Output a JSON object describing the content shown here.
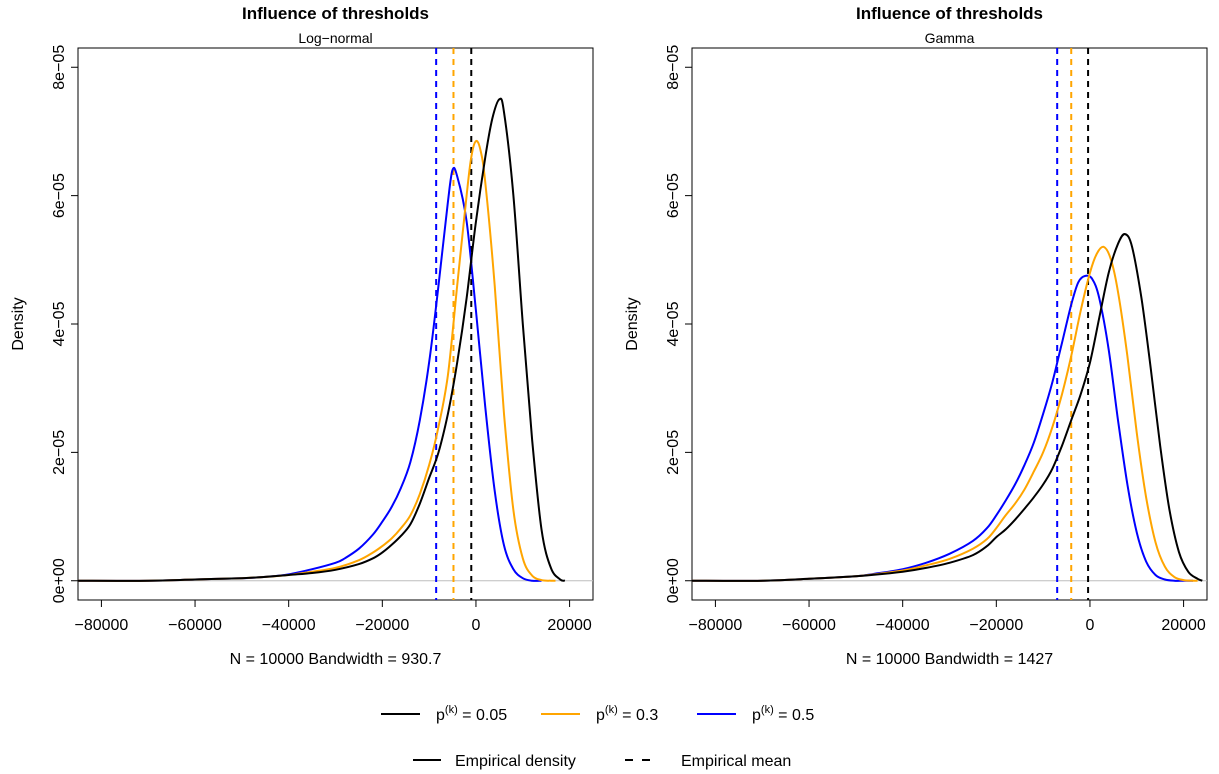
{
  "legend": {
    "thresholds": [
      {
        "label_base": "p",
        "label_sup": "(k)",
        "label_eq": " = 0.05",
        "color": "#000000"
      },
      {
        "label_base": "p",
        "label_sup": "(k)",
        "label_eq": " = 0.3",
        "color": "#FFA500"
      },
      {
        "label_base": "p",
        "label_sup": "(k)",
        "label_eq": " = 0.5",
        "color": "#0000FF"
      }
    ],
    "linetypes": [
      {
        "label": "Empirical density",
        "dash": "solid"
      },
      {
        "label": "Empirical mean",
        "dash": "dashed"
      }
    ]
  },
  "chart_data": [
    {
      "type": "line",
      "title": "Influence of thresholds",
      "subtitle": "Log−normal",
      "ylabel": "Density",
      "xlabel": "N = 10000   Bandwidth = 930.7",
      "xlim": [
        -85000,
        25000
      ],
      "ylim": [
        -3e-06,
        8.3e-05
      ],
      "xticks": [
        -80000,
        -60000,
        -40000,
        -20000,
        0,
        20000
      ],
      "xtick_labels": [
        "−80000",
        "−60000",
        "−40000",
        "−20000",
        "0",
        "20000"
      ],
      "yticks": [
        0,
        2e-05,
        4e-05,
        6e-05,
        8e-05
      ],
      "ytick_labels": [
        "0e+00",
        "2e−05",
        "4e−05",
        "6e−05",
        "8e−05"
      ],
      "grid": false,
      "series": [
        {
          "color": "#000000",
          "mean": -1000,
          "x": [
            -85000,
            -70000,
            -60000,
            -50000,
            -45000,
            -40000,
            -35000,
            -30000,
            -25000,
            -22000,
            -20000,
            -18000,
            -16000,
            -14000,
            -12000,
            -10000,
            -8000,
            -6000,
            -4000,
            -2000,
            0,
            2000,
            3500,
            5000,
            6000,
            8000,
            10000,
            12000,
            14000,
            16000,
            18000,
            19000
          ],
          "y": [
            0,
            0,
            2e-07,
            4e-07,
            6e-07,
            9e-07,
            1.2e-06,
            1.7e-06,
            2.6e-06,
            3.5e-06,
            4.4e-06,
            5.6e-06,
            7e-06,
            8.8e-06,
            1.2e-05,
            1.6e-05,
            2e-05,
            2.6e-05,
            3.4e-05,
            4.4e-05,
            5.6e-05,
            6.6e-05,
            7.2e-05,
            7.5e-05,
            7.3e-05,
            6e-05,
            4e-05,
            2.2e-05,
            8e-06,
            2e-06,
            2e-07,
            0
          ]
        },
        {
          "color": "#FFA500",
          "mean": -4800,
          "x": [
            -85000,
            -70000,
            -60000,
            -50000,
            -45000,
            -40000,
            -35000,
            -30000,
            -25000,
            -22000,
            -20000,
            -18000,
            -16000,
            -14000,
            -12000,
            -10000,
            -8000,
            -6000,
            -4000,
            -2000,
            -1000,
            0,
            1000,
            2000,
            4000,
            6000,
            8000,
            10000,
            12000,
            14000,
            16000,
            17000
          ],
          "y": [
            0,
            0,
            2e-07,
            4e-07,
            6e-07,
            9e-07,
            1.4e-06,
            2e-06,
            3.2e-06,
            4.4e-06,
            5.4e-06,
            6.6e-06,
            8.2e-06,
            1.02e-05,
            1.35e-05,
            1.8e-05,
            2.4e-05,
            3.2e-05,
            4.6e-05,
            6e-05,
            6.6e-05,
            6.85e-05,
            6.7e-05,
            6.2e-05,
            4.6e-05,
            2.6e-05,
            1.1e-05,
            3.5e-06,
            8e-07,
            1e-07,
            0,
            0
          ]
        },
        {
          "color": "#0000FF",
          "mean": -8500,
          "x": [
            -85000,
            -70000,
            -60000,
            -50000,
            -45000,
            -40000,
            -35000,
            -30000,
            -28000,
            -25000,
            -22000,
            -20000,
            -18000,
            -16000,
            -14000,
            -12000,
            -10000,
            -8000,
            -6000,
            -5000,
            -4000,
            -2000,
            0,
            2000,
            4000,
            6000,
            8000,
            10000,
            12000,
            14000
          ],
          "y": [
            0,
            0,
            2e-07,
            4e-07,
            6e-07,
            1e-06,
            1.8e-06,
            2.8e-06,
            3.5e-06,
            5e-06,
            7.2e-06,
            9.2e-06,
            1.15e-05,
            1.45e-05,
            1.85e-05,
            2.5e-05,
            3.4e-05,
            4.6e-05,
            5.9e-05,
            6.4e-05,
            6.3e-05,
            5.6e-05,
            4.2e-05,
            2.7e-05,
            1.4e-05,
            5.5e-06,
            1.8e-06,
            4e-07,
            0,
            0
          ]
        }
      ]
    },
    {
      "type": "line",
      "title": "Influence of thresholds",
      "subtitle": "Gamma",
      "ylabel": "Density",
      "xlabel": "N = 10000   Bandwidth = 1427",
      "xlim": [
        -85000,
        25000
      ],
      "ylim": [
        -3e-06,
        8.3e-05
      ],
      "xticks": [
        -80000,
        -60000,
        -40000,
        -20000,
        0,
        20000
      ],
      "xtick_labels": [
        "−80000",
        "−60000",
        "−40000",
        "−20000",
        "0",
        "20000"
      ],
      "yticks": [
        0,
        2e-05,
        4e-05,
        6e-05,
        8e-05
      ],
      "ytick_labels": [
        "0e+00",
        "2e−05",
        "4e−05",
        "6e−05",
        "8e−05"
      ],
      "grid": false,
      "series": [
        {
          "color": "#000000",
          "mean": -400,
          "x": [
            -85000,
            -70000,
            -60000,
            -50000,
            -45000,
            -40000,
            -35000,
            -30000,
            -25000,
            -22000,
            -20000,
            -18000,
            -16000,
            -14000,
            -12000,
            -10000,
            -8000,
            -6000,
            -4000,
            -2000,
            0,
            2000,
            4000,
            6000,
            7500,
            9000,
            11000,
            13000,
            15000,
            17000,
            19000,
            21000,
            23000,
            24000
          ],
          "y": [
            0,
            0,
            3e-07,
            7e-07,
            1e-06,
            1.4e-06,
            2e-06,
            2.8e-06,
            4e-06,
            5.4e-06,
            6.8e-06,
            8e-06,
            9.5e-06,
            1.12e-05,
            1.3e-05,
            1.5e-05,
            1.75e-05,
            2.1e-05,
            2.5e-05,
            2.9e-05,
            3.4e-05,
            4.1e-05,
            4.8e-05,
            5.25e-05,
            5.4e-05,
            5.2e-05,
            4.4e-05,
            3.3e-05,
            2.1e-05,
            1.1e-05,
            4.5e-06,
            1.4e-06,
            3e-07,
            0
          ]
        },
        {
          "color": "#FFA500",
          "mean": -4000,
          "x": [
            -85000,
            -70000,
            -60000,
            -50000,
            -45000,
            -40000,
            -35000,
            -30000,
            -25000,
            -22000,
            -20000,
            -18000,
            -16000,
            -14000,
            -12000,
            -10000,
            -8000,
            -6000,
            -4000,
            -2000,
            0,
            1500,
            3000,
            4500,
            6000,
            8000,
            10000,
            12000,
            14000,
            16000,
            18000,
            20000,
            22000,
            23000
          ],
          "y": [
            0,
            0,
            3e-07,
            7e-07,
            1.1e-06,
            1.6e-06,
            2.4e-06,
            3.4e-06,
            5e-06,
            6.5e-06,
            8.2e-06,
            1.02e-05,
            1.2e-05,
            1.42e-05,
            1.7e-05,
            2e-05,
            2.4e-05,
            2.9e-05,
            3.5e-05,
            4.2e-05,
            4.8e-05,
            5.1e-05,
            5.2e-05,
            5e-05,
            4.5e-05,
            3.5e-05,
            2.3e-05,
            1.3e-05,
            6e-06,
            2.2e-06,
            6e-07,
            1e-07,
            0,
            0
          ]
        },
        {
          "color": "#0000FF",
          "mean": -7000,
          "x": [
            -85000,
            -70000,
            -60000,
            -50000,
            -45000,
            -40000,
            -35000,
            -30000,
            -25000,
            -22000,
            -20000,
            -18000,
            -16000,
            -14000,
            -12000,
            -10000,
            -8000,
            -6000,
            -4000,
            -2500,
            -1000,
            500,
            2000,
            4000,
            6000,
            8000,
            10000,
            12000,
            14000,
            16000,
            18000,
            20000,
            22000
          ],
          "y": [
            0,
            0,
            3e-07,
            7e-07,
            1.2e-06,
            1.8e-06,
            2.8e-06,
            4.2e-06,
            6.2e-06,
            8.2e-06,
            1.02e-05,
            1.25e-05,
            1.5e-05,
            1.8e-05,
            2.15e-05,
            2.6e-05,
            3.1e-05,
            3.7e-05,
            4.3e-05,
            4.65e-05,
            4.75e-05,
            4.7e-05,
            4.4e-05,
            3.6e-05,
            2.5e-05,
            1.5e-05,
            7.5e-06,
            3e-06,
            9e-07,
            2e-07,
            0,
            0,
            0
          ]
        }
      ]
    }
  ]
}
